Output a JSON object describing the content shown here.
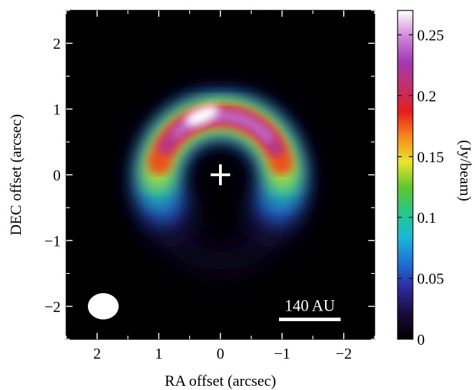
{
  "chart_data": {
    "type": "heatmap",
    "title": "",
    "xlabel": "RA offset (arcsec)",
    "ylabel": "DEC offset (arcsec)",
    "xlim": [
      2.5,
      -2.5
    ],
    "ylim": [
      -2.5,
      2.5
    ],
    "x_ticks": [
      2,
      1,
      0,
      -1,
      -2
    ],
    "x_tick_labels": [
      "2",
      "1",
      "0",
      "−1",
      "−2"
    ],
    "y_ticks": [
      2,
      1,
      0,
      -1,
      -2
    ],
    "y_tick_labels": [
      "2",
      "1",
      "0",
      "−1",
      "−2"
    ],
    "colorbar": {
      "label": "(Jy/beam)",
      "range": [
        0,
        0.27
      ],
      "ticks": [
        0,
        0.05,
        0.1,
        0.15,
        0.2,
        0.25
      ],
      "tick_labels": [
        "0",
        "0.05",
        "0.1",
        "0.15",
        "0.2",
        "0.25"
      ],
      "colormap": [
        "#000000",
        "#1a0a3a",
        "#2b2a9a",
        "#1f6fd6",
        "#19b6d8",
        "#24c98a",
        "#5ec72c",
        "#e8e62a",
        "#f78a18",
        "#e51d1d",
        "#c0306a",
        "#a33ab8",
        "#d08ad8",
        "#ffffff"
      ]
    },
    "source": {
      "shape": "horseshoe-ring",
      "center": [
        0,
        0
      ],
      "ring_radius_ra": 1.0,
      "ring_radius_dec": 0.95,
      "ring_center": [
        0,
        -0.05
      ],
      "peak_position": [
        0.3,
        0.9
      ],
      "peak_value": 0.27
    },
    "annotations": {
      "star_marker": {
        "symbol": "+",
        "position": [
          0,
          0
        ]
      },
      "beam": {
        "position": [
          1.9,
          -2.0
        ],
        "major": 0.5,
        "minor": 0.4
      },
      "scale_bar": {
        "label": "140 AU",
        "from": -0.95,
        "to": -1.95,
        "y": -2.2
      }
    }
  }
}
